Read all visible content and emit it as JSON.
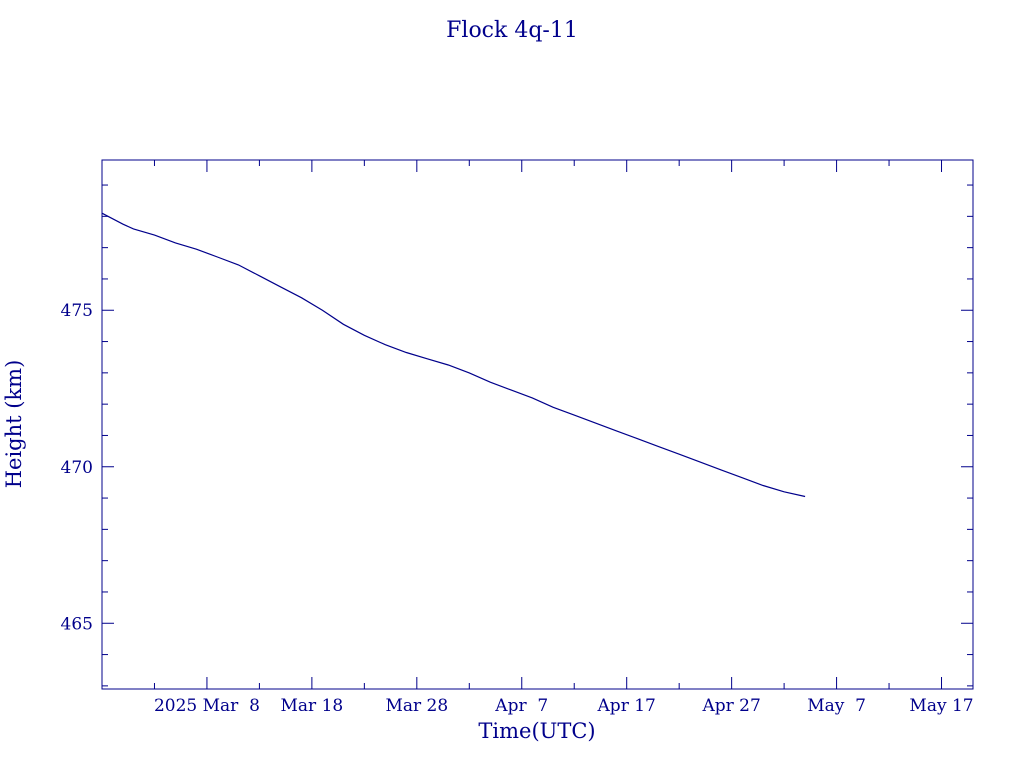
{
  "chart_data": {
    "type": "line",
    "title": "Flock 4q-11",
    "xlabel": "Time(UTC)",
    "ylabel": "Height (km)",
    "x_range": [
      "2025-02-26",
      "2025-05-20"
    ],
    "ylim": [
      462.9,
      479.8
    ],
    "x_tick_labels": [
      {
        "date": "2025-03-08",
        "label": "2025 Mar  8"
      },
      {
        "date": "2025-03-18",
        "label": "Mar 18"
      },
      {
        "date": "2025-03-28",
        "label": "Mar 28"
      },
      {
        "date": "2025-04-07",
        "label": "Apr  7"
      },
      {
        "date": "2025-04-17",
        "label": "Apr 17"
      },
      {
        "date": "2025-04-27",
        "label": "Apr 27"
      },
      {
        "date": "2025-05-07",
        "label": "May  7"
      },
      {
        "date": "2025-05-17",
        "label": "May 17"
      }
    ],
    "y_tick_labels": [
      465,
      470,
      475
    ],
    "y_minor_step": 1,
    "x_minor_step_days": 5,
    "grid": false,
    "line_color": "#00008b",
    "series": [
      {
        "x": [
          "2025-02-26",
          "2025-02-28",
          "2025-03-01",
          "2025-03-03",
          "2025-03-05",
          "2025-03-07",
          "2025-03-09",
          "2025-03-11",
          "2025-03-13",
          "2025-03-15",
          "2025-03-17",
          "2025-03-19",
          "2025-03-21",
          "2025-03-23",
          "2025-03-25",
          "2025-03-27",
          "2025-03-29",
          "2025-03-31",
          "2025-04-02",
          "2025-04-04",
          "2025-04-06",
          "2025-04-08",
          "2025-04-10",
          "2025-04-12",
          "2025-04-14",
          "2025-04-16",
          "2025-04-18",
          "2025-04-20",
          "2025-04-22",
          "2025-04-24",
          "2025-04-26",
          "2025-04-28",
          "2025-04-30",
          "2025-05-02",
          "2025-05-04"
        ],
        "y": [
          478.1,
          477.75,
          477.6,
          477.4,
          477.15,
          476.95,
          476.7,
          476.45,
          476.1,
          475.75,
          475.4,
          475.0,
          474.55,
          474.2,
          473.9,
          473.65,
          473.45,
          473.25,
          473.0,
          472.7,
          472.45,
          472.2,
          471.9,
          471.65,
          471.4,
          471.15,
          470.9,
          470.65,
          470.4,
          470.15,
          469.9,
          469.65,
          469.4,
          469.2,
          469.05
        ]
      }
    ]
  }
}
